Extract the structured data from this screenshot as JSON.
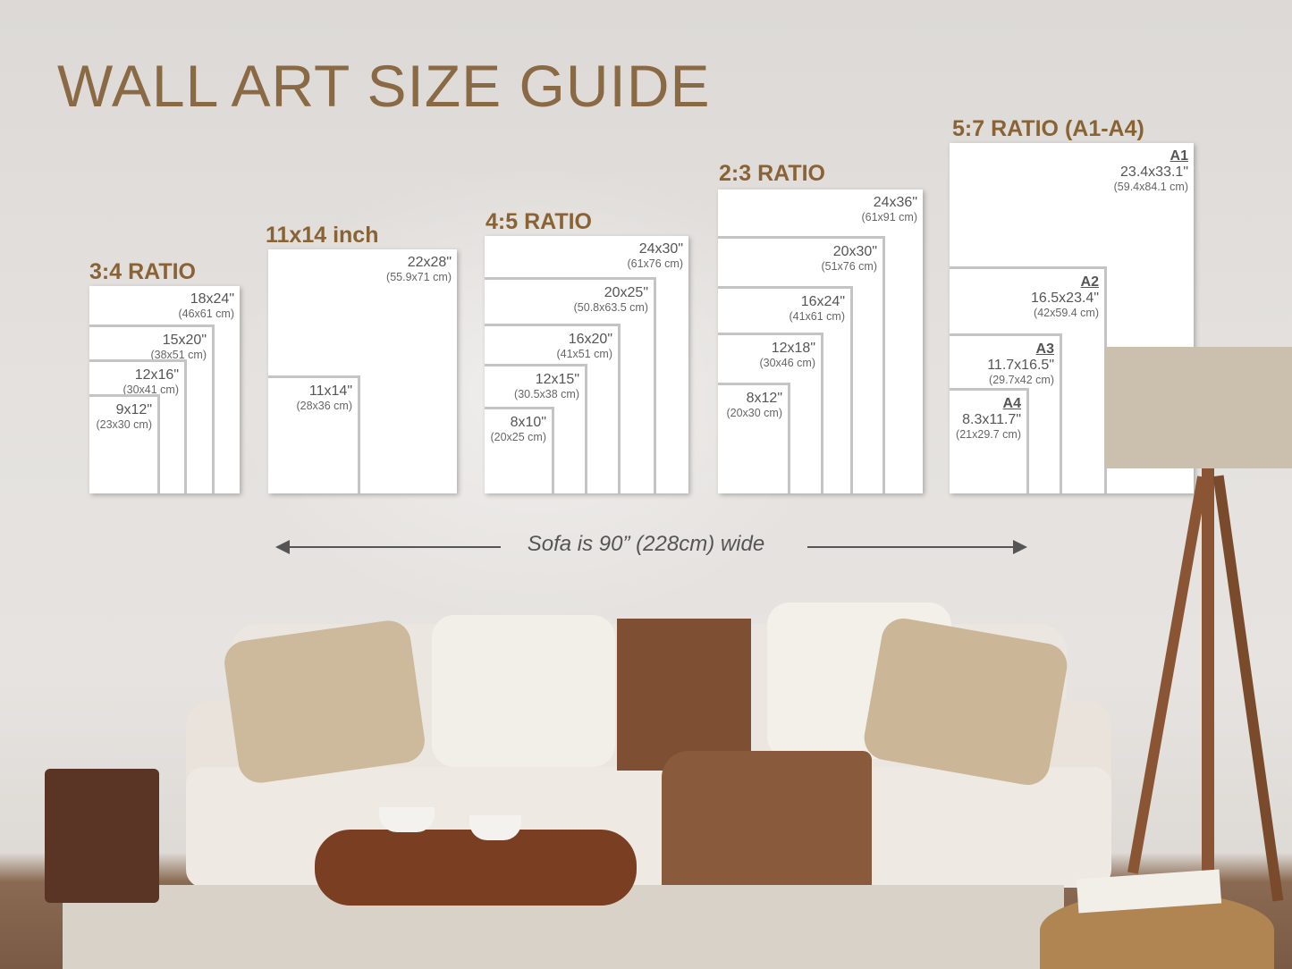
{
  "title": "WALL ART SIZE GUIDE",
  "groups": [
    {
      "name": "3:4 RATIO",
      "frames": [
        {
          "inch": "18x24\"",
          "cm": "(46x61 cm)"
        },
        {
          "inch": "15x20\"",
          "cm": "(38x51 cm)"
        },
        {
          "inch": "12x16\"",
          "cm": "(30x41 cm)"
        },
        {
          "inch": "9x12\"",
          "cm": "(23x30 cm)"
        }
      ]
    },
    {
      "name": "11x14 inch",
      "frames": [
        {
          "inch": "22x28\"",
          "cm": "(55.9x71 cm)"
        },
        {
          "inch": "11x14\"",
          "cm": "(28x36 cm)"
        }
      ]
    },
    {
      "name": "4:5 RATIO",
      "frames": [
        {
          "inch": "24x30\"",
          "cm": "(61x76 cm)"
        },
        {
          "inch": "20x25\"",
          "cm": "(50.8x63.5 cm)"
        },
        {
          "inch": "16x20\"",
          "cm": "(41x51 cm)"
        },
        {
          "inch": "12x15\"",
          "cm": "(30.5x38 cm)"
        },
        {
          "inch": "8x10\"",
          "cm": "(20x25 cm)"
        }
      ]
    },
    {
      "name": "2:3 RATIO",
      "frames": [
        {
          "inch": "24x36\"",
          "cm": "(61x91 cm)"
        },
        {
          "inch": "20x30\"",
          "cm": "(51x76 cm)"
        },
        {
          "inch": "16x24\"",
          "cm": "(41x61 cm)"
        },
        {
          "inch": "12x18\"",
          "cm": "(30x46 cm)"
        },
        {
          "inch": "8x12\"",
          "cm": "(20x30 cm)"
        }
      ]
    },
    {
      "name": "5:7 RATIO (A1-A4)",
      "frames": [
        {
          "paper": "A1",
          "inch": "23.4x33.1\"",
          "cm": "(59.4x84.1 cm)"
        },
        {
          "paper": "A2",
          "inch": "16.5x23.4\"",
          "cm": "(42x59.4 cm)"
        },
        {
          "paper": "A3",
          "inch": "11.7x16.5\"",
          "cm": "(29.7x42 cm)"
        },
        {
          "paper": "A4",
          "inch": "8.3x11.7\"",
          "cm": "(21x29.7 cm)"
        }
      ]
    }
  ],
  "sofa_note": "Sofa is 90” (228cm) wide",
  "colors": {
    "title": "#8a6a45",
    "group_title": "#8a6335",
    "frame_border": "#c4c4c4"
  }
}
